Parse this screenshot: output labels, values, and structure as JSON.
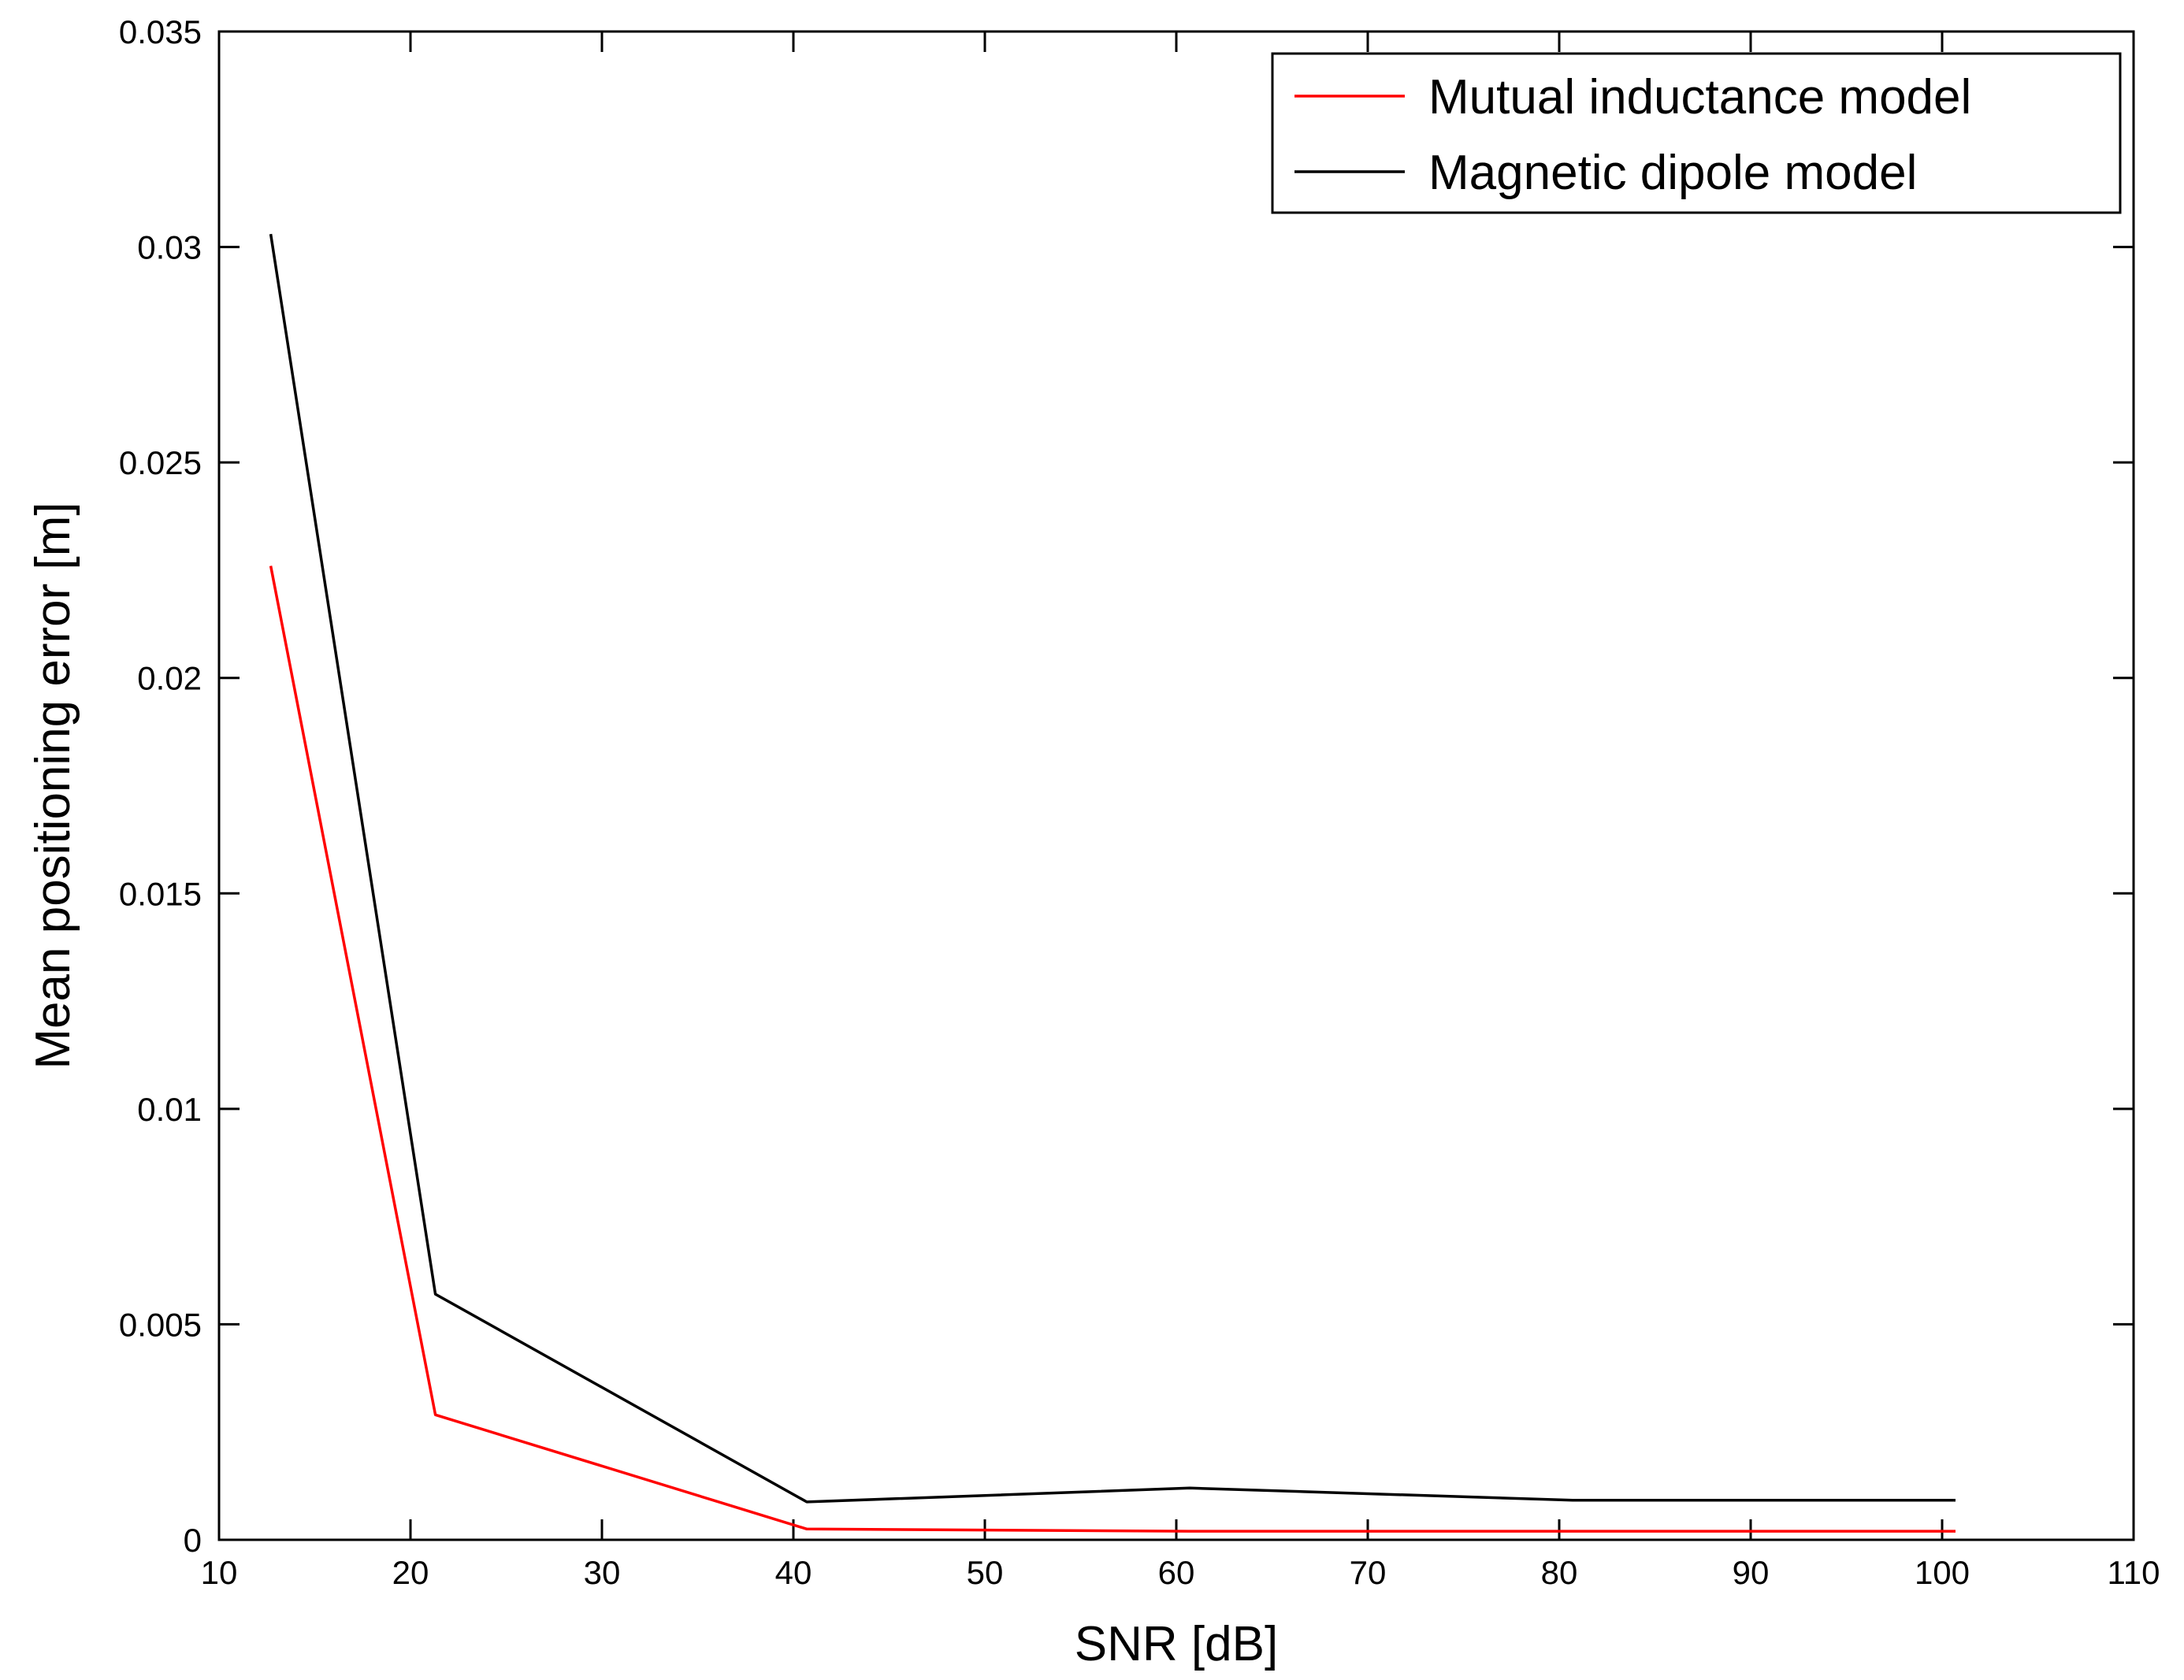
{
  "chart_data": {
    "type": "line",
    "xlabel": "SNR [dB]",
    "ylabel": "Mean positioning error [m]",
    "xlim": [
      10,
      110
    ],
    "ylim": [
      0,
      0.035
    ],
    "xticks": [
      10,
      20,
      30,
      40,
      50,
      60,
      70,
      80,
      90,
      100,
      110
    ],
    "xtick_labels": [
      "10",
      "20",
      "30",
      "40",
      "50",
      "60",
      "70",
      "80",
      "90",
      "100",
      "110"
    ],
    "yticks": [
      0,
      0.005,
      0.01,
      0.015,
      0.02,
      0.025,
      0.03,
      0.035
    ],
    "ytick_labels": [
      "0",
      "0.005",
      "0.01",
      "0.015",
      "0.02",
      "0.025",
      "0.03",
      "0.035"
    ],
    "grid": false,
    "legend_position": "top-right",
    "series": [
      {
        "name": "Mutual inductance model",
        "color": "#ff0000",
        "x": [
          12.7,
          21.3,
          40.7,
          60.7,
          80.7,
          100.7
        ],
        "y": [
          0.0226,
          0.0029,
          0.00025,
          0.0002,
          0.0002,
          0.0002
        ]
      },
      {
        "name": "Magnetic dipole model",
        "color": "#000000",
        "x": [
          12.7,
          21.3,
          40.7,
          60.7,
          80.7,
          100.7
        ],
        "y": [
          0.0303,
          0.0057,
          0.00088,
          0.0012,
          0.00092,
          0.00092
        ]
      }
    ]
  }
}
